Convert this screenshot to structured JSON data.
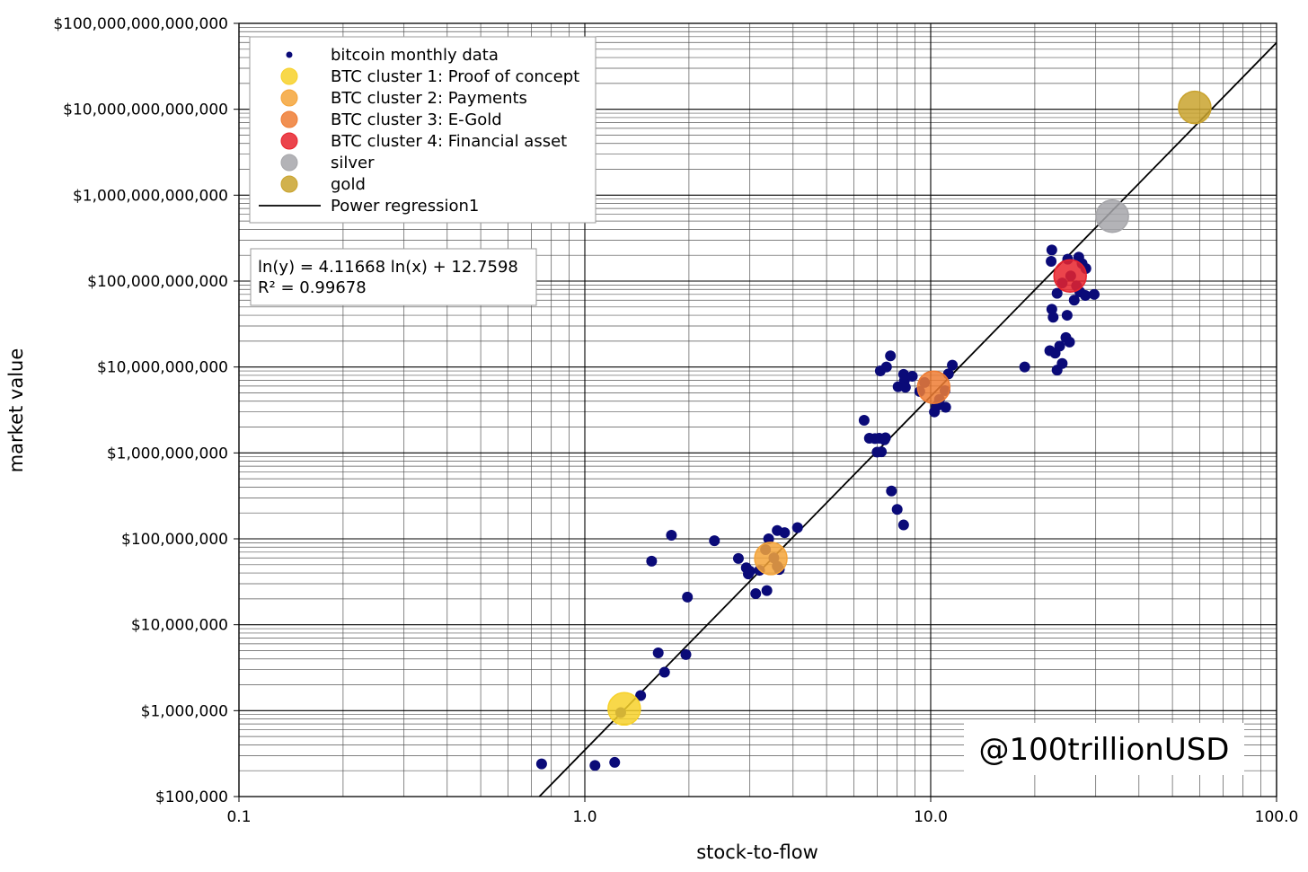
{
  "chart_data": {
    "type": "scatter",
    "xscale": "log",
    "yscale": "log",
    "xlim": [
      0.1,
      100
    ],
    "ylim": [
      100000,
      100000000000000
    ],
    "xlabel": "stock-to-flow",
    "ylabel": "market value",
    "grid": true,
    "legend_position": "top-left",
    "x_ticks": [
      {
        "value": 0.1,
        "label": "0.1"
      },
      {
        "value": 1,
        "label": "1.0"
      },
      {
        "value": 10,
        "label": "10.0"
      },
      {
        "value": 100,
        "label": "100.0"
      }
    ],
    "y_ticks": [
      {
        "value": 100000,
        "label": "$100,000"
      },
      {
        "value": 1000000,
        "label": "$1,000,000"
      },
      {
        "value": 10000000,
        "label": "$10,000,000"
      },
      {
        "value": 100000000,
        "label": "$100,000,000"
      },
      {
        "value": 1000000000,
        "label": "$1,000,000,000"
      },
      {
        "value": 10000000000,
        "label": "$10,000,000,000"
      },
      {
        "value": 100000000000,
        "label": "$100,000,000,000"
      },
      {
        "value": 1000000000000,
        "label": "$1,000,000,000,000"
      },
      {
        "value": 10000000000000,
        "label": "$10,000,000,000,000"
      },
      {
        "value": 100000000000000,
        "label": "$100,000,000,000,000"
      }
    ],
    "series": [
      {
        "name": "bitcoin monthly data",
        "kind": "points",
        "color": "#0a0a78",
        "points": [
          [
            0.75,
            240000
          ],
          [
            1.07,
            230000
          ],
          [
            1.22,
            250000
          ],
          [
            1.27,
            950000
          ],
          [
            1.45,
            1500000
          ],
          [
            1.63,
            4700000
          ],
          [
            1.7,
            2800000
          ],
          [
            1.96,
            4500000
          ],
          [
            1.56,
            55000000
          ],
          [
            1.78,
            110000000
          ],
          [
            1.98,
            21000000
          ],
          [
            2.37,
            95000000
          ],
          [
            2.78,
            59000000
          ],
          [
            2.93,
            46000000
          ],
          [
            3.0,
            42000000
          ],
          [
            2.97,
            39000000
          ],
          [
            3.12,
            23000000
          ],
          [
            3.36,
            25000000
          ],
          [
            3.2,
            43000000
          ],
          [
            3.33,
            75000000
          ],
          [
            3.4,
            100000000
          ],
          [
            3.52,
            60000000
          ],
          [
            3.6,
            48000000
          ],
          [
            3.6,
            125000000
          ],
          [
            3.78,
            118000000
          ],
          [
            4.12,
            135000000
          ],
          [
            3.65,
            44000000
          ],
          [
            6.42,
            2400000000
          ],
          [
            6.65,
            1480000000
          ],
          [
            6.9,
            1470000000
          ],
          [
            7.1,
            1480000000
          ],
          [
            7.0,
            1020000000
          ],
          [
            7.2,
            1030000000
          ],
          [
            7.4,
            1500000000
          ],
          [
            7.35,
            1420000000
          ],
          [
            7.15,
            9000000000
          ],
          [
            7.45,
            10000000000
          ],
          [
            7.65,
            13500000000
          ],
          [
            8.05,
            5900000000
          ],
          [
            8.35,
            8200000000
          ],
          [
            8.4,
            7000000000
          ],
          [
            8.45,
            5800000000
          ],
          [
            8.85,
            7800000000
          ],
          [
            9.3,
            5200000000
          ],
          [
            9.6,
            6600000000
          ],
          [
            10.25,
            3000000000
          ],
          [
            10.4,
            3500000000
          ],
          [
            10.6,
            4200000000
          ],
          [
            11.05,
            3400000000
          ],
          [
            11.0,
            5300000000
          ],
          [
            11.25,
            8300000000
          ],
          [
            11.55,
            10500000000
          ],
          [
            7.7,
            360000000
          ],
          [
            8.0,
            220000000
          ],
          [
            8.35,
            145000000
          ],
          [
            18.7,
            10000000000
          ],
          [
            22.1,
            15500000000
          ],
          [
            22.9,
            14500000000
          ],
          [
            23.6,
            17500000000
          ],
          [
            23.2,
            9200000000
          ],
          [
            24.0,
            11000000000
          ],
          [
            24.6,
            22000000000
          ],
          [
            25.2,
            19500000000
          ],
          [
            22.6,
            38000000000
          ],
          [
            22.4,
            47000000000
          ],
          [
            24.8,
            40000000000
          ],
          [
            22.4,
            230000000000
          ],
          [
            22.3,
            170000000000
          ],
          [
            23.2,
            72000000000
          ],
          [
            24.0,
            95000000000
          ],
          [
            24.9,
            180000000000
          ],
          [
            25.4,
            115000000000
          ],
          [
            26.4,
            88000000000
          ],
          [
            27.0,
            75000000000
          ],
          [
            26.0,
            60000000000
          ],
          [
            28.0,
            68000000000
          ],
          [
            29.7,
            70000000000
          ],
          [
            28.1,
            140000000000
          ],
          [
            26.8,
            190000000000
          ],
          [
            27.4,
            160000000000
          ]
        ]
      },
      {
        "name": "BTC cluster 1: Proof of concept",
        "kind": "marker",
        "color": "#f7d12a",
        "points": [
          [
            1.3,
            1050000
          ]
        ]
      },
      {
        "name": "BTC cluster 2: Payments",
        "kind": "marker",
        "color": "#f4a43a",
        "points": [
          [
            3.45,
            59000000
          ]
        ]
      },
      {
        "name": "BTC cluster 3: E-Gold",
        "kind": "marker",
        "color": "#ee7c34",
        "points": [
          [
            10.2,
            5800000000
          ]
        ]
      },
      {
        "name": "BTC cluster 4: Financial asset",
        "kind": "marker",
        "color": "#e8232d",
        "points": [
          [
            25.3,
            115000000000
          ]
        ]
      },
      {
        "name": "silver",
        "kind": "marker",
        "color": "#a6a6aa",
        "points": [
          [
            33.5,
            570000000000
          ]
        ]
      },
      {
        "name": "gold",
        "kind": "marker",
        "color": "#c9a32e",
        "points": [
          [
            58.0,
            10500000000000
          ]
        ]
      },
      {
        "name": "Power regression1",
        "kind": "line",
        "color": "#000000",
        "slope": 4.11668,
        "intercept": 12.7598,
        "x_range": [
          0.73,
          100
        ]
      }
    ],
    "annotation_lines": [
      "ln(y) = 4.11668 ln(x) + 12.7598",
      "R² = 0.99678"
    ]
  },
  "watermark": "@100trillionUSD"
}
